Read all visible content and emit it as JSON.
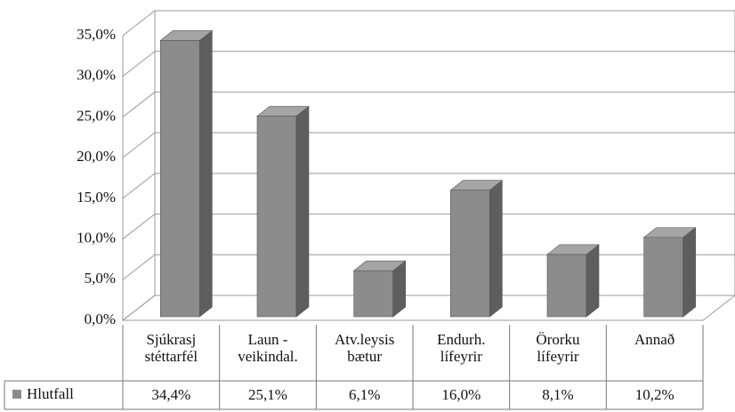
{
  "chart_data": {
    "type": "bar3d",
    "categories": [
      "Sjúkrasj\nstéttarfél",
      "Laun -\nveikindal.",
      "Atv.leysis\nbætur",
      "Endurh.\nlífeyrir",
      "Örorku\nlífeyrir",
      "Annað"
    ],
    "series": [
      {
        "name": "Hlutfall",
        "color": "#8c8c8c",
        "values": [
          34.4,
          25.1,
          6.1,
          16.0,
          8.1,
          10.2
        ],
        "value_labels": [
          "34,4%",
          "25,1%",
          "6,1%",
          "16,0%",
          "8,1%",
          "10,2%"
        ]
      }
    ],
    "ylim": [
      0,
      35
    ],
    "yticks": [
      {
        "value": 0,
        "label": "0,0%"
      },
      {
        "value": 5,
        "label": "5,0%"
      },
      {
        "value": 10,
        "label": "10,0%"
      },
      {
        "value": 15,
        "label": "15,0%"
      },
      {
        "value": 20,
        "label": "20,0%"
      },
      {
        "value": 25,
        "label": "25,0%"
      },
      {
        "value": 30,
        "label": "30,0%"
      },
      {
        "value": 35,
        "label": "35,0%"
      }
    ],
    "grid": true
  }
}
